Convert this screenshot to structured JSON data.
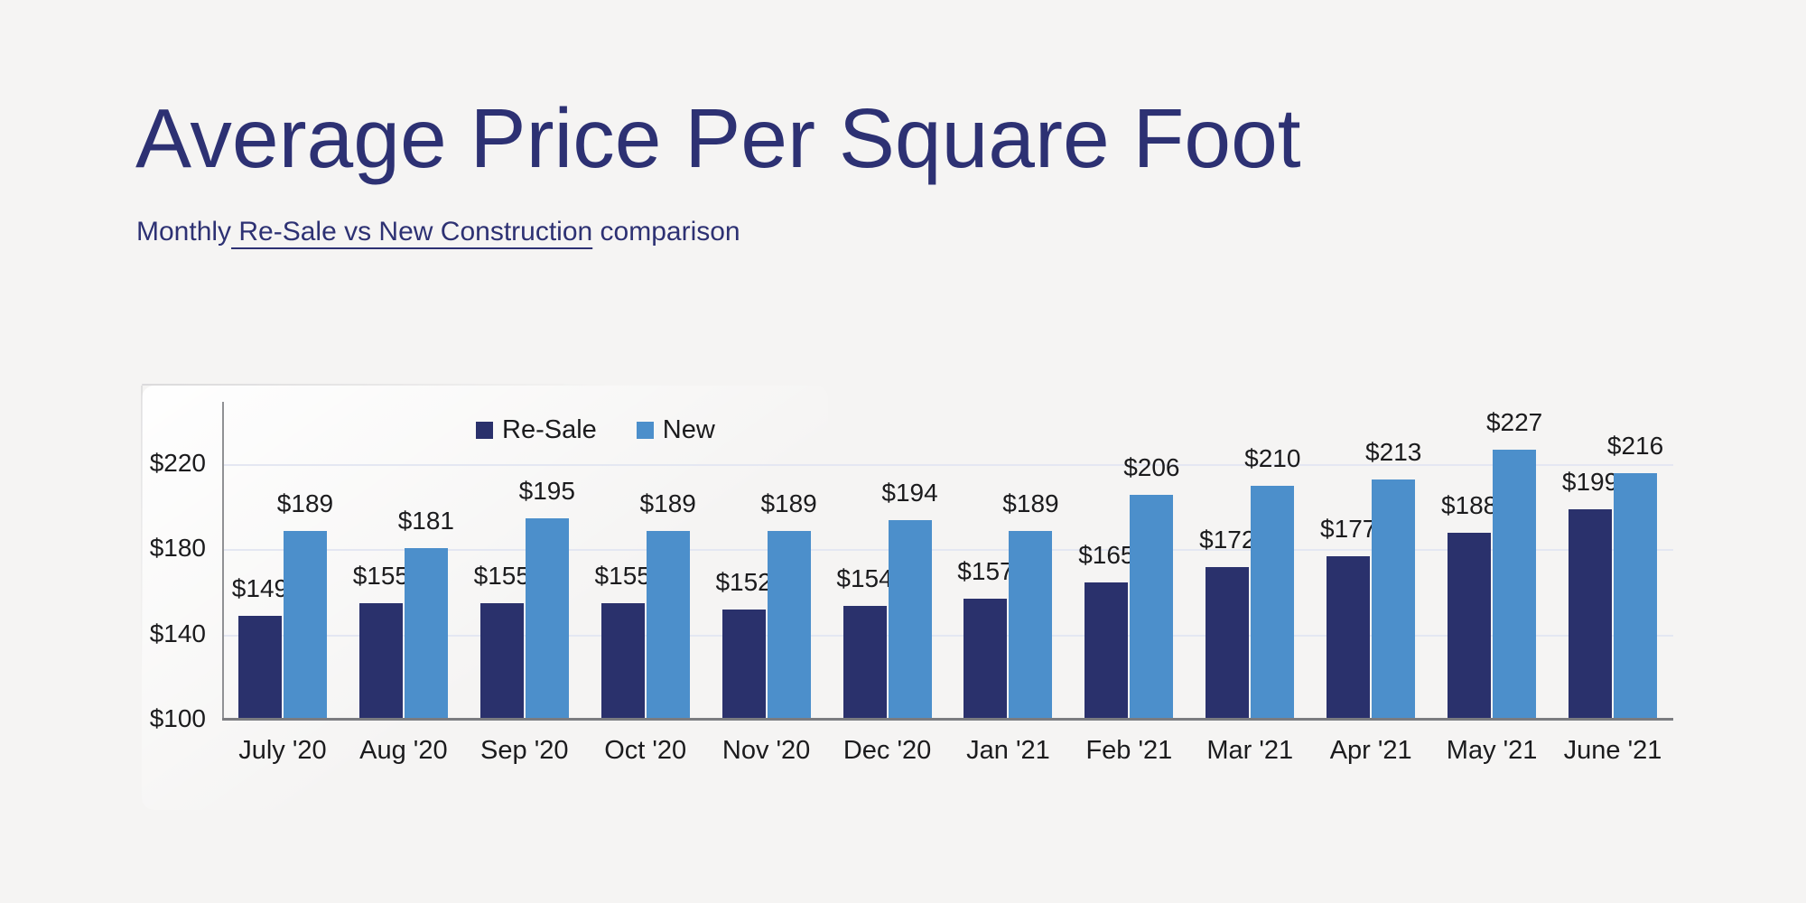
{
  "page": {
    "background_color": "#f5f4f3",
    "accent_color": "#2d3173"
  },
  "header": {
    "title": "Average Price Per Square Foot",
    "subtitle_prefix": "Monthly",
    "subtitle_underlined": " Re-Sale vs New Construction",
    "subtitle_suffix": " comparison"
  },
  "chart_data": {
    "type": "bar",
    "title": "Average Price Per Square Foot",
    "subtitle": "Monthly Re-Sale vs New Construction comparison",
    "categories": [
      "July '20",
      "Aug '20",
      "Sep '20",
      "Oct '20",
      "Nov '20",
      "Dec '20",
      "Jan '21",
      "Feb '21",
      "Mar '21",
      "Apr '21",
      "May '21",
      "June '21"
    ],
    "series": [
      {
        "name": "Re-Sale",
        "color": "#2a316c",
        "values": [
          149,
          155,
          155,
          155,
          152,
          154,
          157,
          165,
          172,
          177,
          188,
          199
        ]
      },
      {
        "name": "New",
        "color": "#4c8fcb",
        "values": [
          189,
          181,
          195,
          189,
          189,
          194,
          189,
          206,
          210,
          213,
          227,
          216
        ]
      }
    ],
    "value_prefix": "$",
    "xlabel": "",
    "ylabel": "",
    "yticks": [
      100,
      140,
      180,
      220
    ],
    "ytick_labels": [
      "$100",
      "$140",
      "$180",
      "$220"
    ],
    "ylim": [
      100,
      249.5
    ],
    "grid": true,
    "grid_color": "#e4e7f2",
    "axis_color": "#7b7c80",
    "legend_position": "top-inside-left",
    "data_labels": true,
    "label_color": "#1b1b1d"
  }
}
